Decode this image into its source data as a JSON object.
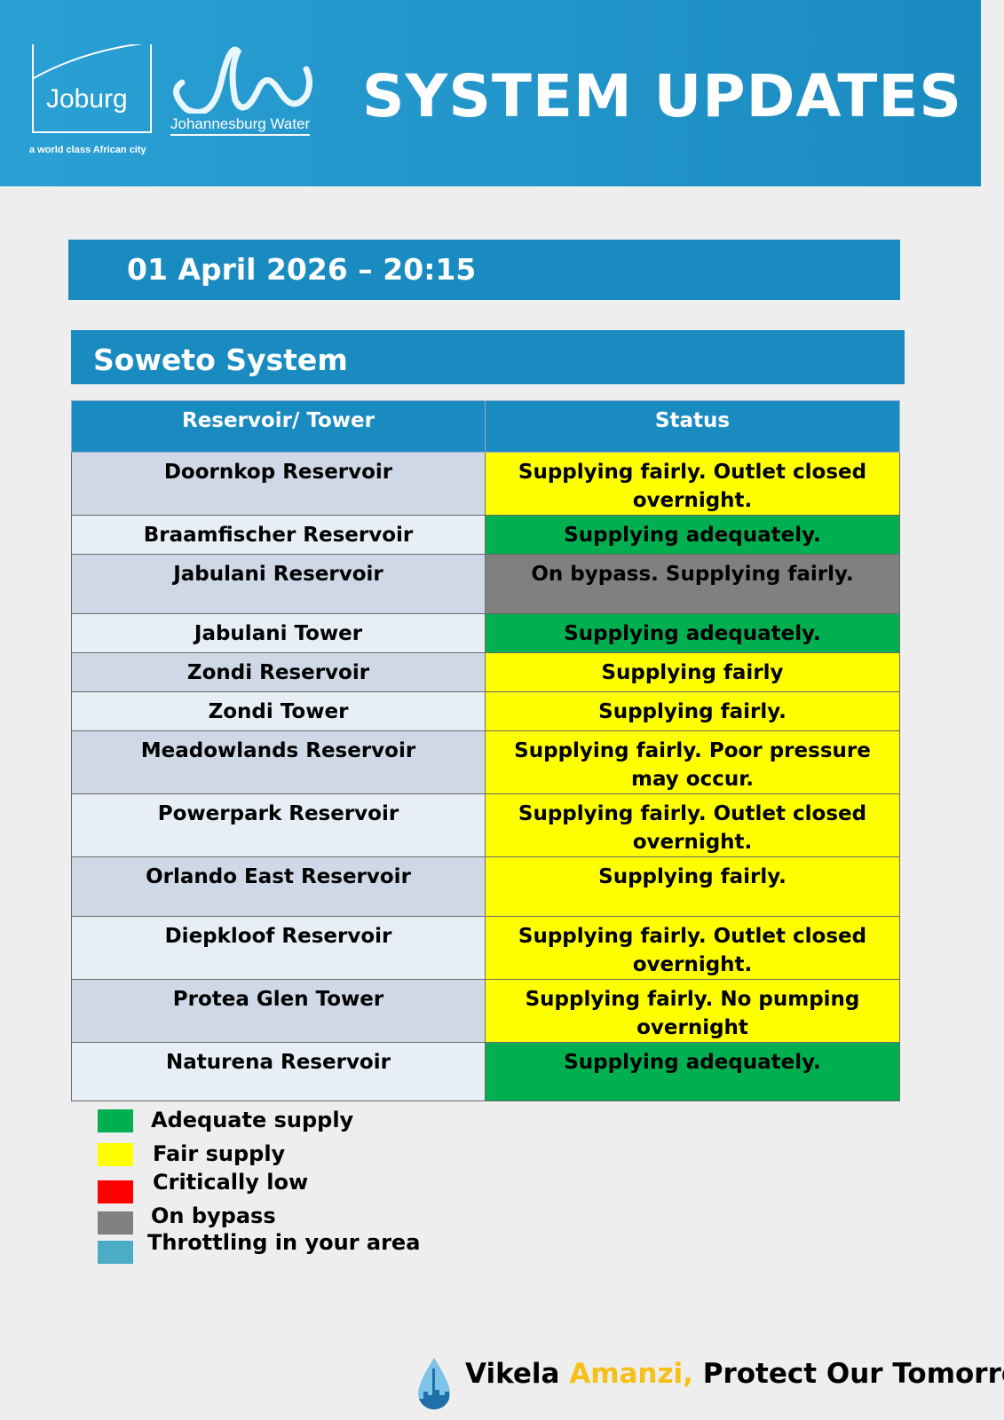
{
  "header": {
    "city_logo_text": "Joburg",
    "city_tagline": "a world class African city",
    "water_logo_text": "Johannesburg Water",
    "title": "SYSTEM UPDATES"
  },
  "date_time": "01 April 2026 – 20:15",
  "system_name": "Soweto System",
  "table": {
    "headers": [
      "Reservoir/ Tower",
      "Status"
    ],
    "rows": [
      {
        "name": "Doornkop Reservoir",
        "status": "Supplying fairly. Outlet closed overnight.",
        "level": "fair"
      },
      {
        "name": "Braamfischer Reservoir",
        "status": "Supplying adequately.",
        "level": "adequate"
      },
      {
        "name": "Jabulani Reservoir",
        "status": "On bypass. Supplying fairly.",
        "level": "bypass"
      },
      {
        "name": "Jabulani Tower",
        "status": "Supplying adequately.",
        "level": "adequate"
      },
      {
        "name": "Zondi Reservoir",
        "status": "Supplying fairly",
        "level": "fair"
      },
      {
        "name": "Zondi Tower",
        "status": "Supplying fairly.",
        "level": "fair"
      },
      {
        "name": "Meadowlands Reservoir",
        "status": "Supplying fairly. Poor pressure may occur.",
        "level": "fair"
      },
      {
        "name": "Powerpark Reservoir",
        "status": "Supplying fairly. Outlet closed overnight.",
        "level": "fair"
      },
      {
        "name": "Orlando East Reservoir",
        "status": "Supplying fairly.",
        "level": "fair"
      },
      {
        "name": "Diepkloof Reservoir",
        "status": "Supplying fairly. Outlet closed overnight.",
        "level": "fair"
      },
      {
        "name": "Protea Glen Tower",
        "status": "Supplying fairly. No pumping overnight",
        "level": "fair"
      },
      {
        "name": "Naturena Reservoir",
        "status": "Supplying adequately.",
        "level": "adequate"
      }
    ]
  },
  "status_colors": {
    "adequate": "#00b050",
    "fair": "#ffff00",
    "critical": "#ff0000",
    "bypass": "#808080",
    "throttling": "#4bacc6"
  },
  "legend": [
    {
      "label": "Adequate supply",
      "color": "#00b050"
    },
    {
      "label": "Fair supply",
      "color": "#ffff00"
    },
    {
      "label": "Critically low",
      "color": "#ff0000"
    },
    {
      "label": "On bypass",
      "color": "#808080"
    },
    {
      "label": "Throttling in your area",
      "color": "#4bacc6"
    }
  ],
  "footer": {
    "part1": "Vikela ",
    "part2": "Amanzi,",
    "part3": " Protect Our Tomorrow",
    "accent": "#f5c118"
  }
}
